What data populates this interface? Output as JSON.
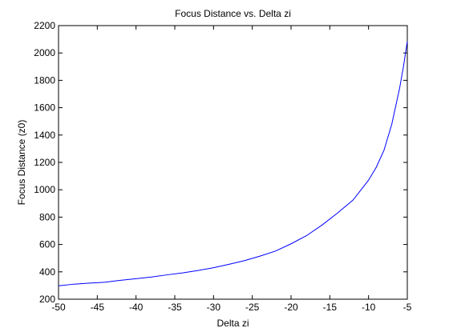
{
  "chart_data": {
    "type": "line",
    "title": "Focus Distance vs. Delta zi",
    "xlabel": "Delta zi",
    "ylabel": "Focus Distance (z0)",
    "xlim": [
      -50,
      -5
    ],
    "ylim": [
      200,
      2200
    ],
    "grid": false,
    "xticks": [
      -50,
      -45,
      -40,
      -35,
      -30,
      -25,
      -20,
      -15,
      -10,
      -5
    ],
    "yticks": [
      200,
      400,
      600,
      800,
      1000,
      1200,
      1400,
      1600,
      1800,
      2000,
      2200
    ],
    "series": [
      {
        "color": "#0000ff",
        "x": [
          -50,
          -48,
          -46,
          -44,
          -42,
          -40,
          -38,
          -36,
          -34,
          -32,
          -30,
          -28,
          -26,
          -24,
          -22,
          -20,
          -18,
          -16,
          -14,
          -12,
          -10,
          -9,
          -8,
          -7,
          -6,
          -5.5,
          -5
        ],
        "y": [
          298,
          310,
          318,
          324,
          338,
          350,
          362,
          378,
          392,
          410,
          430,
          455,
          482,
          515,
          552,
          605,
          665,
          742,
          830,
          925,
          1070,
          1165,
          1290,
          1480,
          1740,
          1900,
          2085
        ]
      }
    ]
  }
}
